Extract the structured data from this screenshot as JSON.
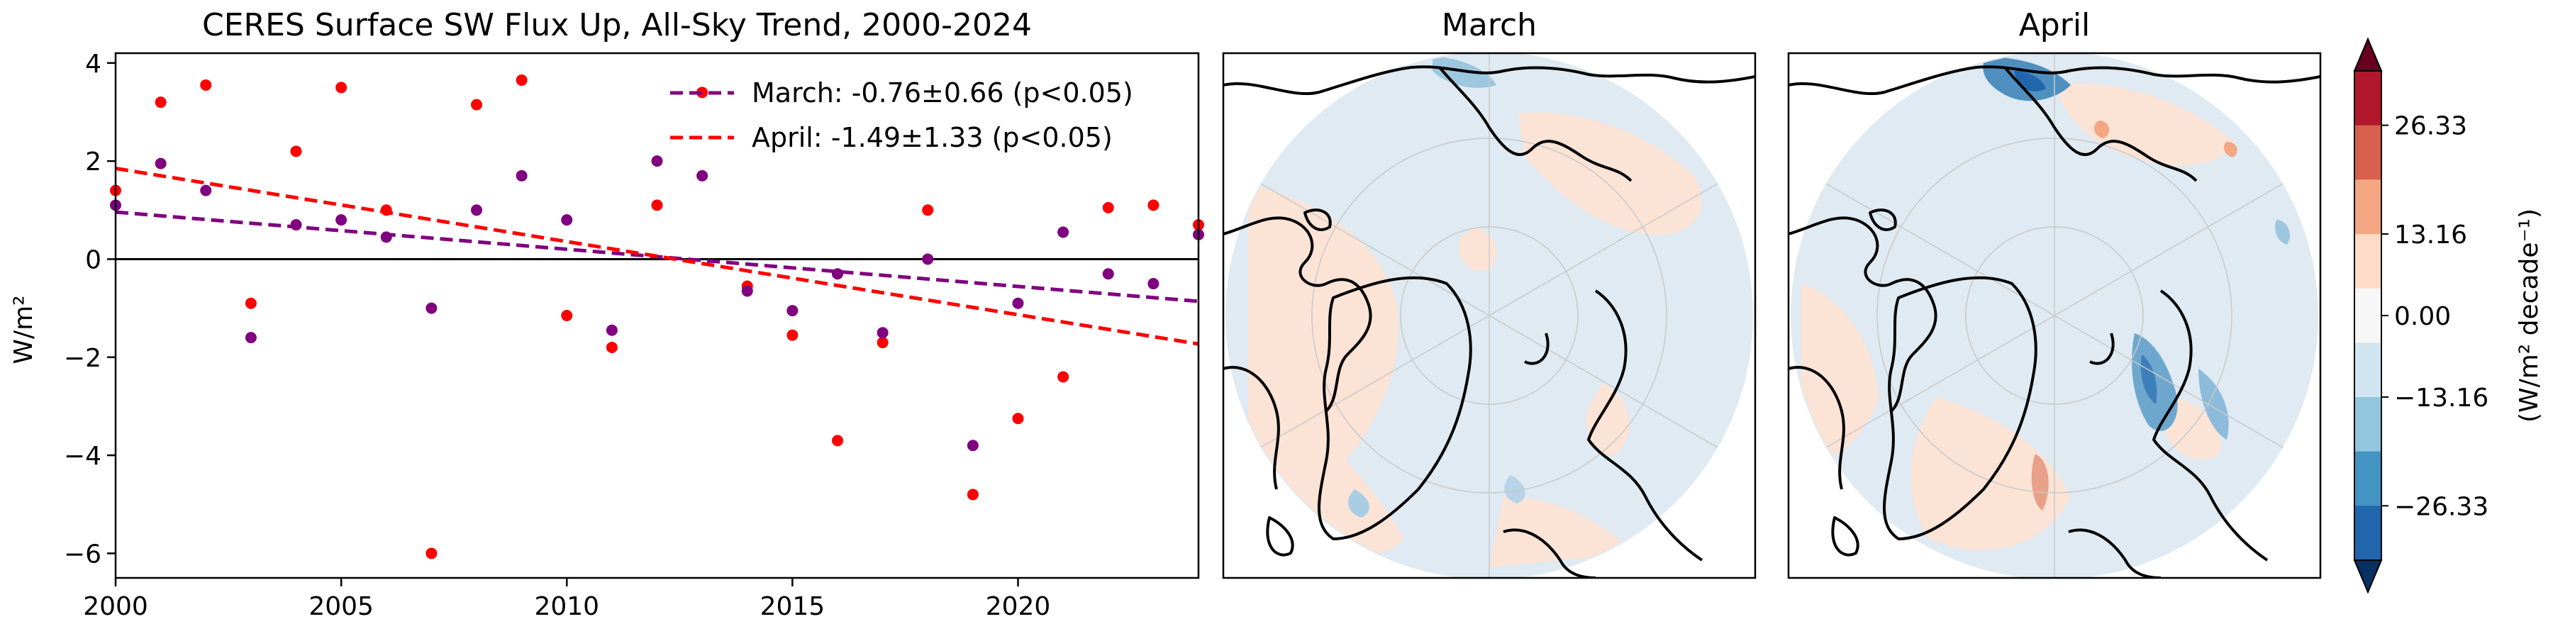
{
  "chart_data": [
    {
      "type": "scatter",
      "title": "CERES Surface SW Flux Up, All-Sky Trend, 2000-2024",
      "xlabel": "",
      "ylabel": "W/m²",
      "xlim": [
        2000,
        2024
      ],
      "ylim": [
        -6.5,
        4.2
      ],
      "xticks": [
        "2000",
        "2005",
        "2010",
        "2015",
        "2020"
      ],
      "yticks": [
        "4",
        "2",
        "0",
        "−2",
        "−4",
        "−6"
      ],
      "legend_position": "top-right",
      "series": [
        {
          "name": "March: -0.76±0.66 (p<0.05)",
          "color": "#800080",
          "x": [
            2000,
            2001,
            2002,
            2003,
            2004,
            2005,
            2006,
            2007,
            2008,
            2009,
            2010,
            2011,
            2012,
            2013,
            2014,
            2015,
            2016,
            2017,
            2018,
            2019,
            2020,
            2021,
            2022,
            2023,
            2024
          ],
          "y": [
            1.1,
            1.95,
            1.4,
            -1.6,
            0.7,
            0.8,
            0.45,
            -1.0,
            1.0,
            1.7,
            0.8,
            -1.45,
            2.0,
            1.7,
            -0.65,
            -1.05,
            -0.3,
            -1.5,
            0.0,
            -3.8,
            -0.9,
            0.55,
            -0.3,
            -0.5,
            0.5
          ],
          "trend": {
            "start": 0.96,
            "end": -0.86
          }
        },
        {
          "name": "April: -1.49±1.33 (p<0.05)",
          "color": "#ff0000",
          "x": [
            2000,
            2001,
            2002,
            2003,
            2004,
            2005,
            2006,
            2007,
            2008,
            2009,
            2010,
            2011,
            2012,
            2013,
            2014,
            2015,
            2016,
            2017,
            2018,
            2019,
            2020,
            2021,
            2022,
            2023,
            2024
          ],
          "y": [
            1.4,
            3.2,
            3.55,
            -0.9,
            2.2,
            3.5,
            1.0,
            -6.0,
            3.15,
            3.65,
            -1.15,
            -1.8,
            1.1,
            3.4,
            -0.55,
            -1.55,
            -3.7,
            -1.7,
            1.0,
            -4.8,
            -3.25,
            -2.4,
            1.05,
            1.1,
            0.7
          ],
          "trend": {
            "start": 1.85,
            "end": -1.73
          }
        }
      ]
    },
    {
      "type": "heatmap",
      "title": "March",
      "description_colors": "mostly near-zero trend; weak blue in Arctic Ocean interior, weak orange over Eurasian/Canadian margins"
    },
    {
      "type": "heatmap",
      "title": "April",
      "description_colors": "near-zero with stronger blue patches near Siberian coast and Barents Sea, scattered orange patches"
    }
  ],
  "colorbar": {
    "label": "(W/m² decade⁻¹)",
    "ticks": [
      "26.33",
      "13.16",
      "0.00",
      "−13.16",
      "−26.33"
    ],
    "colors": [
      "#67001f",
      "#b2182b",
      "#d6604d",
      "#f4a582",
      "#fddbc7",
      "#f7f7f7",
      "#d1e5f0",
      "#92c5de",
      "#4393c3",
      "#2166ac",
      "#053061"
    ]
  }
}
